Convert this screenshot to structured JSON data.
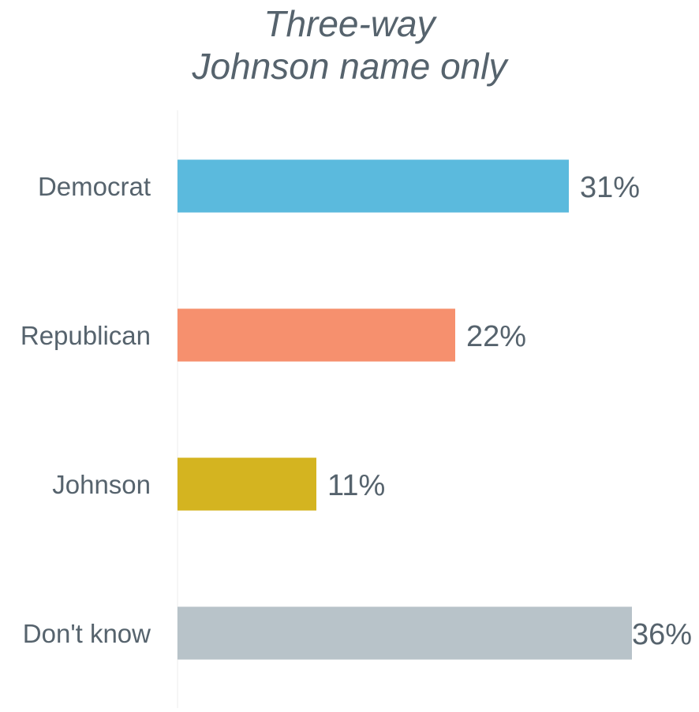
{
  "chart_data": {
    "type": "bar",
    "orientation": "horizontal",
    "title_lines": [
      "Three-way",
      "Johnson name only"
    ],
    "categories": [
      "Democrat",
      "Republican",
      "Johnson",
      "Don't know"
    ],
    "values": [
      31,
      22,
      11,
      36
    ],
    "value_labels": [
      "31%",
      "22%",
      "11%",
      "36%"
    ],
    "colors": [
      "#5bbadd",
      "#f6906e",
      "#d4b420",
      "#b8c3c9"
    ],
    "xlim": [
      0,
      36
    ],
    "grid": false,
    "legend": "none"
  }
}
